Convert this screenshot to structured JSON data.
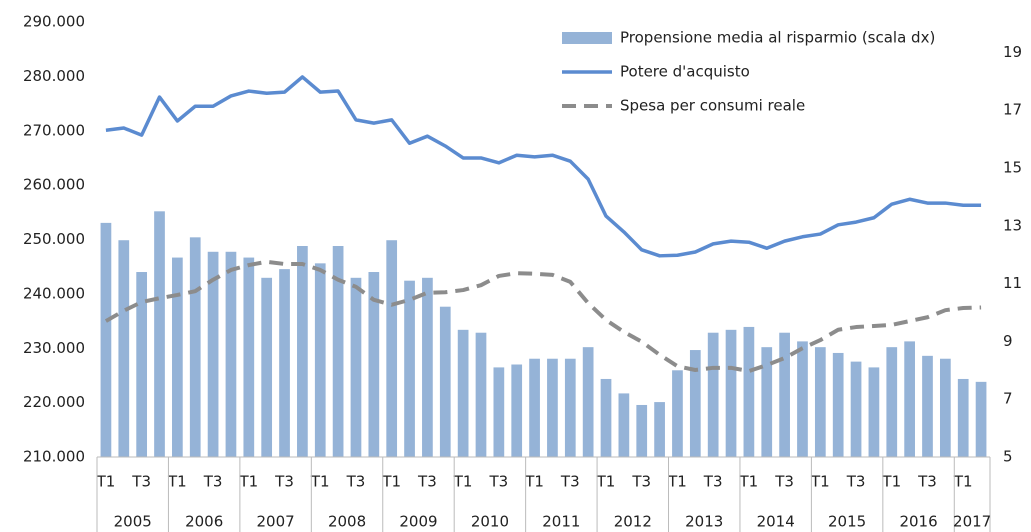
{
  "chart_data": {
    "type": "combo",
    "categories": [
      "T1",
      null,
      "T3",
      null,
      "T1",
      null,
      "T3",
      null,
      "T1",
      null,
      "T3",
      null,
      "T1",
      null,
      "T3",
      null,
      "T1",
      null,
      "T3",
      null,
      "T1",
      null,
      "T3",
      null,
      "T1",
      null,
      "T3",
      null,
      "T1",
      null,
      "T3",
      null,
      "T1",
      null,
      "T3",
      null,
      "T1",
      null,
      "T3",
      null,
      "T1",
      null,
      "T3",
      null,
      "T1",
      null,
      "T3",
      null,
      "T1",
      null
    ],
    "years": [
      "2005",
      "2006",
      "2007",
      "2008",
      "2009",
      "2010",
      "2011",
      "2012",
      "2013",
      "2014",
      "2015",
      "2016",
      "2017"
    ],
    "ylim": [
      210000,
      290000
    ],
    "yticks": [
      {
        "value": 210000,
        "label": "210.000"
      },
      {
        "value": 220000,
        "label": "220.000"
      },
      {
        "value": 230000,
        "label": "230.000"
      },
      {
        "value": 240000,
        "label": "240.000"
      },
      {
        "value": 250000,
        "label": "250.000"
      },
      {
        "value": 260000,
        "label": "260.000"
      },
      {
        "value": 270000,
        "label": "270.000"
      },
      {
        "value": 280000,
        "label": "280.000"
      },
      {
        "value": 290000,
        "label": "290.000"
      }
    ],
    "y2lim": [
      5,
      20.05
    ],
    "y2ticks": [
      5,
      7,
      9,
      11,
      13,
      15,
      17,
      19
    ],
    "legend": "top-right",
    "series": [
      {
        "name": "Propensione media al risparmio (scala dx)",
        "type": "bar",
        "axis": "y2",
        "color": "#95b3d7",
        "values": [
          13.1,
          12.5,
          11.4,
          13.5,
          11.9,
          12.6,
          12.1,
          12.1,
          11.9,
          11.2,
          11.5,
          12.3,
          11.7,
          12.3,
          11.2,
          11.4,
          12.5,
          11.1,
          11.2,
          10.2,
          9.4,
          9.3,
          8.1,
          8.2,
          8.4,
          8.4,
          8.4,
          8.8,
          7.7,
          7.2,
          6.8,
          6.9,
          8.0,
          8.7,
          9.3,
          9.4,
          9.5,
          8.8,
          9.3,
          9.0,
          8.8,
          8.6,
          8.3,
          8.1,
          8.8,
          9.0,
          8.5,
          8.4,
          7.7,
          7.6
        ]
      },
      {
        "name": "Potere d'acquisto",
        "type": "line",
        "color": "#5b8bd0",
        "dashed": false,
        "values": [
          270100,
          270500,
          269200,
          276200,
          271800,
          274500,
          274500,
          276400,
          277300,
          276900,
          277100,
          279900,
          277100,
          277300,
          272000,
          271400,
          272000,
          267700,
          269000,
          267200,
          265000,
          265000,
          264100,
          265500,
          265200,
          265500,
          264400,
          261100,
          254300,
          251400,
          248100,
          247000,
          247100,
          247700,
          249200,
          249700,
          249500,
          248400,
          249700,
          250500,
          251000,
          252700,
          253200,
          254000,
          256500,
          257400,
          256700,
          256700,
          256300,
          256300
        ]
      },
      {
        "name": "Spesa per consumi reale",
        "type": "line",
        "color": "#8c8c8c",
        "dashed": true,
        "values": [
          235000,
          236900,
          238500,
          239200,
          239800,
          240500,
          242600,
          244400,
          245300,
          245900,
          245500,
          245500,
          244400,
          242600,
          241300,
          238900,
          238000,
          238900,
          240200,
          240300,
          240700,
          241600,
          243300,
          243800,
          243700,
          243500,
          242200,
          238300,
          235200,
          233000,
          231200,
          228800,
          226700,
          226000,
          226400,
          226400,
          225800,
          226900,
          228200,
          230000,
          231500,
          233400,
          233900,
          234100,
          234300,
          235000,
          235700,
          237000,
          237400,
          237500
        ]
      }
    ]
  }
}
